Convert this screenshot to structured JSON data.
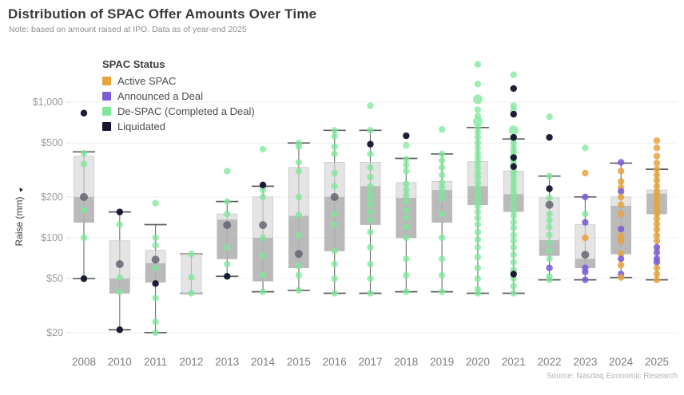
{
  "header": {
    "title": "Distribution of SPAC Offer Amounts Over Time",
    "subtitle": "Note: based on amount raised at IPO. Data as of year-end 2025"
  },
  "footer": {
    "source": "Source: Nasdaq Economic Research"
  },
  "legend": {
    "title": "SPAC Status",
    "items": [
      {
        "label": "Active SPAC",
        "key": "o",
        "color": "#E8A33B"
      },
      {
        "label": "Announced a Deal",
        "key": "p",
        "color": "#7B5DD6"
      },
      {
        "label": "De-SPAC (Completed a Deal)",
        "key": "g",
        "color": "#7EE79A"
      },
      {
        "label": "Liquidated",
        "key": "k",
        "color": "#15152E"
      }
    ]
  },
  "y_axis": {
    "title": "Raise (mm)",
    "sort_icon": "▲",
    "ticks": [
      {
        "label": "$1,000",
        "value": 1000
      },
      {
        "label": "$500",
        "value": 500
      },
      {
        "label": "$200",
        "value": 200
      },
      {
        "label": "$100",
        "value": 100
      },
      {
        "label": "$50",
        "value": 50
      },
      {
        "label": "$20",
        "value": 20
      }
    ]
  },
  "chart_data": {
    "type": "box",
    "title": "Distribution of SPAC Offer Amounts Over Time",
    "ylabel": "Raise (mm)",
    "y_scale": "log",
    "ylim": [
      18,
      2100
    ],
    "grid": true,
    "legend_position": "top-left-inside",
    "units": "USD millions raised at IPO",
    "point_colors": {
      "g": "#7EE79A",
      "o": "#E8A33B",
      "p": "#7B5DD6",
      "k": "#15152E",
      "x": "#5F5F6B"
    },
    "categories": [
      "2008",
      "2010",
      "2011",
      "2012",
      "2013",
      "2014",
      "2015",
      "2016",
      "2017",
      "2018",
      "2019",
      "2020",
      "2021",
      "2022",
      "2023",
      "2024",
      "2025"
    ],
    "boxes": [
      {
        "year": "2008",
        "min": 50,
        "q1": 130,
        "med": 200,
        "q3": 400,
        "max": 430,
        "points": [
          [
            830,
            "k"
          ],
          [
            420,
            "g"
          ],
          [
            350,
            "g"
          ],
          [
            200,
            "x",
            5
          ],
          [
            160,
            "g"
          ],
          [
            100,
            "g"
          ],
          [
            50,
            "g"
          ],
          [
            50,
            "k"
          ]
        ]
      },
      {
        "year": "2010",
        "min": 21,
        "q1": 39,
        "med": 50,
        "q3": 95,
        "max": 155,
        "points": [
          [
            155,
            "k"
          ],
          [
            125,
            "g"
          ],
          [
            64,
            "x",
            5
          ],
          [
            51,
            "g"
          ],
          [
            40,
            "g"
          ],
          [
            21,
            "k"
          ]
        ]
      },
      {
        "year": "2011",
        "min": 20,
        "q1": 47,
        "med": 65,
        "q3": 81,
        "max": 125,
        "points": [
          [
            180,
            "g"
          ],
          [
            100,
            "g"
          ],
          [
            88,
            "g"
          ],
          [
            69,
            "x",
            5
          ],
          [
            60,
            "g"
          ],
          [
            46,
            "k"
          ],
          [
            36,
            "g"
          ],
          [
            24,
            "g"
          ],
          [
            20,
            "g"
          ]
        ]
      },
      {
        "year": "2012",
        "min": 39,
        "q1": 39,
        "med": 39,
        "q3": 76,
        "max": 76,
        "points": [
          [
            76,
            "g"
          ],
          [
            51,
            "g"
          ],
          [
            39,
            "g"
          ]
        ]
      },
      {
        "year": "2013",
        "min": 52,
        "q1": 70,
        "med": 136,
        "q3": 150,
        "max": 185,
        "points": [
          [
            310,
            "g"
          ],
          [
            185,
            "g"
          ],
          [
            150,
            "g"
          ],
          [
            124,
            "x",
            5
          ],
          [
            85,
            "g"
          ],
          [
            64,
            "g"
          ],
          [
            52,
            "g"
          ],
          [
            52,
            "k"
          ]
        ]
      },
      {
        "year": "2014",
        "min": 40,
        "q1": 48,
        "med": 100,
        "q3": 200,
        "max": 240,
        "points": [
          [
            450,
            "g"
          ],
          [
            245,
            "k"
          ],
          [
            225,
            "g"
          ],
          [
            200,
            "g"
          ],
          [
            124,
            "x",
            5
          ],
          [
            100,
            "g"
          ],
          [
            74,
            "g"
          ],
          [
            53,
            "g"
          ],
          [
            40,
            "g"
          ]
        ]
      },
      {
        "year": "2015",
        "min": 41,
        "q1": 60,
        "med": 145,
        "q3": 330,
        "max": 500,
        "points": [
          [
            500,
            "g"
          ],
          [
            470,
            "g"
          ],
          [
            360,
            "g"
          ],
          [
            310,
            "g"
          ],
          [
            200,
            "g"
          ],
          [
            147,
            "g"
          ],
          [
            104,
            "g"
          ],
          [
            76,
            "x",
            5
          ],
          [
            62,
            "g"
          ],
          [
            53,
            "g"
          ],
          [
            41,
            "g"
          ]
        ]
      },
      {
        "year": "2016",
        "min": 39,
        "q1": 80,
        "med": 200,
        "q3": 360,
        "max": 620,
        "points": [
          [
            620,
            "g"
          ],
          [
            560,
            "g"
          ],
          [
            470,
            "g"
          ],
          [
            415,
            "g"
          ],
          [
            300,
            "g"
          ],
          [
            240,
            "g"
          ],
          [
            200,
            "x",
            5
          ],
          [
            150,
            "g"
          ],
          [
            125,
            "g"
          ],
          [
            80,
            "g"
          ],
          [
            64,
            "g"
          ],
          [
            50,
            "g"
          ],
          [
            39,
            "g"
          ]
        ]
      },
      {
        "year": "2017",
        "min": 39,
        "q1": 125,
        "med": 240,
        "q3": 360,
        "max": 620,
        "points": [
          [
            940,
            "g"
          ],
          [
            620,
            "g"
          ],
          [
            490,
            "k"
          ],
          [
            415,
            "g"
          ],
          [
            330,
            "g"
          ],
          [
            280,
            "g"
          ],
          [
            240,
            "g"
          ],
          [
            215,
            "g"
          ],
          [
            195,
            "g"
          ],
          [
            175,
            "g"
          ],
          [
            155,
            "g"
          ],
          [
            135,
            "g"
          ],
          [
            110,
            "g"
          ],
          [
            85,
            "g"
          ],
          [
            64,
            "g"
          ],
          [
            50,
            "g"
          ],
          [
            39,
            "g"
          ]
        ]
      },
      {
        "year": "2018",
        "min": 40,
        "q1": 100,
        "med": 197,
        "q3": 255,
        "max": 385,
        "points": [
          [
            565,
            "k"
          ],
          [
            480,
            "g"
          ],
          [
            380,
            "g"
          ],
          [
            345,
            "g"
          ],
          [
            310,
            "g"
          ],
          [
            250,
            "g"
          ],
          [
            225,
            "g"
          ],
          [
            205,
            "g"
          ],
          [
            185,
            "g"
          ],
          [
            160,
            "g"
          ],
          [
            140,
            "g"
          ],
          [
            120,
            "g"
          ],
          [
            100,
            "g"
          ],
          [
            70,
            "g"
          ],
          [
            53,
            "g"
          ],
          [
            40,
            "g"
          ]
        ]
      },
      {
        "year": "2019",
        "min": 40,
        "q1": 130,
        "med": 225,
        "q3": 260,
        "max": 415,
        "points": [
          [
            630,
            "g"
          ],
          [
            415,
            "g"
          ],
          [
            370,
            "g"
          ],
          [
            330,
            "g"
          ],
          [
            290,
            "g"
          ],
          [
            255,
            "g"
          ],
          [
            235,
            "g"
          ],
          [
            215,
            "g"
          ],
          [
            195,
            "g"
          ],
          [
            150,
            "g"
          ],
          [
            100,
            "g"
          ],
          [
            70,
            "g"
          ],
          [
            53,
            "g"
          ],
          [
            40,
            "g"
          ]
        ]
      },
      {
        "year": "2020",
        "min": 39,
        "q1": 175,
        "med": 240,
        "q3": 365,
        "max": 650,
        "points": [
          [
            1900,
            "g"
          ],
          [
            1360,
            "g"
          ],
          [
            1050,
            "g",
            6
          ],
          [
            880,
            "g"
          ],
          [
            790,
            "g"
          ],
          [
            720,
            "g",
            6
          ],
          [
            650,
            "g"
          ],
          [
            600,
            "g"
          ],
          [
            550,
            "g"
          ],
          [
            500,
            "g"
          ],
          [
            460,
            "g"
          ],
          [
            420,
            "g"
          ],
          [
            390,
            "g"
          ],
          [
            360,
            "g"
          ],
          [
            330,
            "g"
          ],
          [
            300,
            "g"
          ],
          [
            280,
            "g"
          ],
          [
            255,
            "g"
          ],
          [
            235,
            "g"
          ],
          [
            215,
            "g"
          ],
          [
            200,
            "g"
          ],
          [
            185,
            "g"
          ],
          [
            170,
            "g"
          ],
          [
            155,
            "g"
          ],
          [
            140,
            "g"
          ],
          [
            125,
            "g"
          ],
          [
            110,
            "g"
          ],
          [
            97,
            "g"
          ],
          [
            85,
            "g"
          ],
          [
            72,
            "g"
          ],
          [
            60,
            "g"
          ],
          [
            50,
            "g"
          ],
          [
            42,
            "g"
          ],
          [
            39,
            "g"
          ]
        ]
      },
      {
        "year": "2021",
        "min": 39,
        "q1": 156,
        "med": 210,
        "q3": 310,
        "max": 535,
        "points": [
          [
            1590,
            "g"
          ],
          [
            1260,
            "k"
          ],
          [
            940,
            "g"
          ],
          [
            875,
            "g"
          ],
          [
            815,
            "k"
          ],
          [
            620,
            "g",
            6
          ],
          [
            550,
            "k"
          ],
          [
            535,
            "g"
          ],
          [
            500,
            "g"
          ],
          [
            460,
            "g"
          ],
          [
            430,
            "g"
          ],
          [
            400,
            "g"
          ],
          [
            390,
            "k"
          ],
          [
            360,
            "g"
          ],
          [
            335,
            "k"
          ],
          [
            310,
            "g"
          ],
          [
            290,
            "g"
          ],
          [
            270,
            "g"
          ],
          [
            250,
            "g"
          ],
          [
            230,
            "g"
          ],
          [
            215,
            "g"
          ],
          [
            200,
            "g"
          ],
          [
            185,
            "g"
          ],
          [
            170,
            "g"
          ],
          [
            158,
            "g"
          ],
          [
            145,
            "g"
          ],
          [
            130,
            "g"
          ],
          [
            118,
            "g"
          ],
          [
            105,
            "g"
          ],
          [
            95,
            "g"
          ],
          [
            85,
            "g"
          ],
          [
            75,
            "g"
          ],
          [
            66,
            "g"
          ],
          [
            58,
            "g"
          ],
          [
            54,
            "k"
          ],
          [
            50,
            "g"
          ],
          [
            44,
            "g"
          ],
          [
            39,
            "g"
          ]
        ]
      },
      {
        "year": "2022",
        "min": 49,
        "q1": 74,
        "med": 96,
        "q3": 197,
        "max": 285,
        "points": [
          [
            780,
            "g"
          ],
          [
            550,
            "k"
          ],
          [
            285,
            "g"
          ],
          [
            230,
            "k"
          ],
          [
            197,
            "g"
          ],
          [
            175,
            "x",
            5
          ],
          [
            150,
            "g"
          ],
          [
            135,
            "g"
          ],
          [
            120,
            "g"
          ],
          [
            105,
            "g"
          ],
          [
            92,
            "g"
          ],
          [
            80,
            "g"
          ],
          [
            70,
            "g"
          ],
          [
            60,
            "p"
          ],
          [
            52,
            "g"
          ],
          [
            49,
            "g"
          ]
        ]
      },
      {
        "year": "2023",
        "min": 49,
        "q1": 60,
        "med": 70,
        "q3": 125,
        "max": 200,
        "points": [
          [
            460,
            "g"
          ],
          [
            300,
            "o"
          ],
          [
            200,
            "p"
          ],
          [
            150,
            "g"
          ],
          [
            130,
            "p"
          ],
          [
            100,
            "o"
          ],
          [
            75,
            "x",
            5
          ],
          [
            60,
            "p"
          ],
          [
            56,
            "p"
          ],
          [
            49,
            "p"
          ]
        ]
      },
      {
        "year": "2024",
        "min": 51,
        "q1": 76,
        "med": 172,
        "q3": 200,
        "max": 355,
        "points": [
          [
            360,
            "p"
          ],
          [
            310,
            "o"
          ],
          [
            260,
            "o"
          ],
          [
            235,
            "o"
          ],
          [
            220,
            "p"
          ],
          [
            200,
            "o"
          ],
          [
            175,
            "o"
          ],
          [
            150,
            "o"
          ],
          [
            116,
            "p"
          ],
          [
            103,
            "o"
          ],
          [
            95,
            "o"
          ],
          [
            76,
            "o"
          ],
          [
            70,
            "p"
          ],
          [
            63,
            "o"
          ],
          [
            54,
            "p"
          ],
          [
            51,
            "o"
          ]
        ]
      },
      {
        "year": "2025",
        "min": 49,
        "q1": 150,
        "med": 212,
        "q3": 225,
        "max": 320,
        "points": [
          [
            520,
            "o"
          ],
          [
            460,
            "o"
          ],
          [
            400,
            "o"
          ],
          [
            355,
            "o"
          ],
          [
            320,
            "o"
          ],
          [
            290,
            "o"
          ],
          [
            265,
            "o"
          ],
          [
            240,
            "o"
          ],
          [
            220,
            "o"
          ],
          [
            205,
            "o"
          ],
          [
            190,
            "o"
          ],
          [
            175,
            "o"
          ],
          [
            162,
            "o"
          ],
          [
            150,
            "o"
          ],
          [
            138,
            "o"
          ],
          [
            126,
            "o"
          ],
          [
            115,
            "o"
          ],
          [
            104,
            "o"
          ],
          [
            95,
            "o"
          ],
          [
            85,
            "p"
          ],
          [
            78,
            "p"
          ],
          [
            70,
            "p"
          ],
          [
            66,
            "p"
          ],
          [
            60,
            "o"
          ],
          [
            54,
            "o"
          ],
          [
            49,
            "o"
          ]
        ]
      }
    ]
  }
}
